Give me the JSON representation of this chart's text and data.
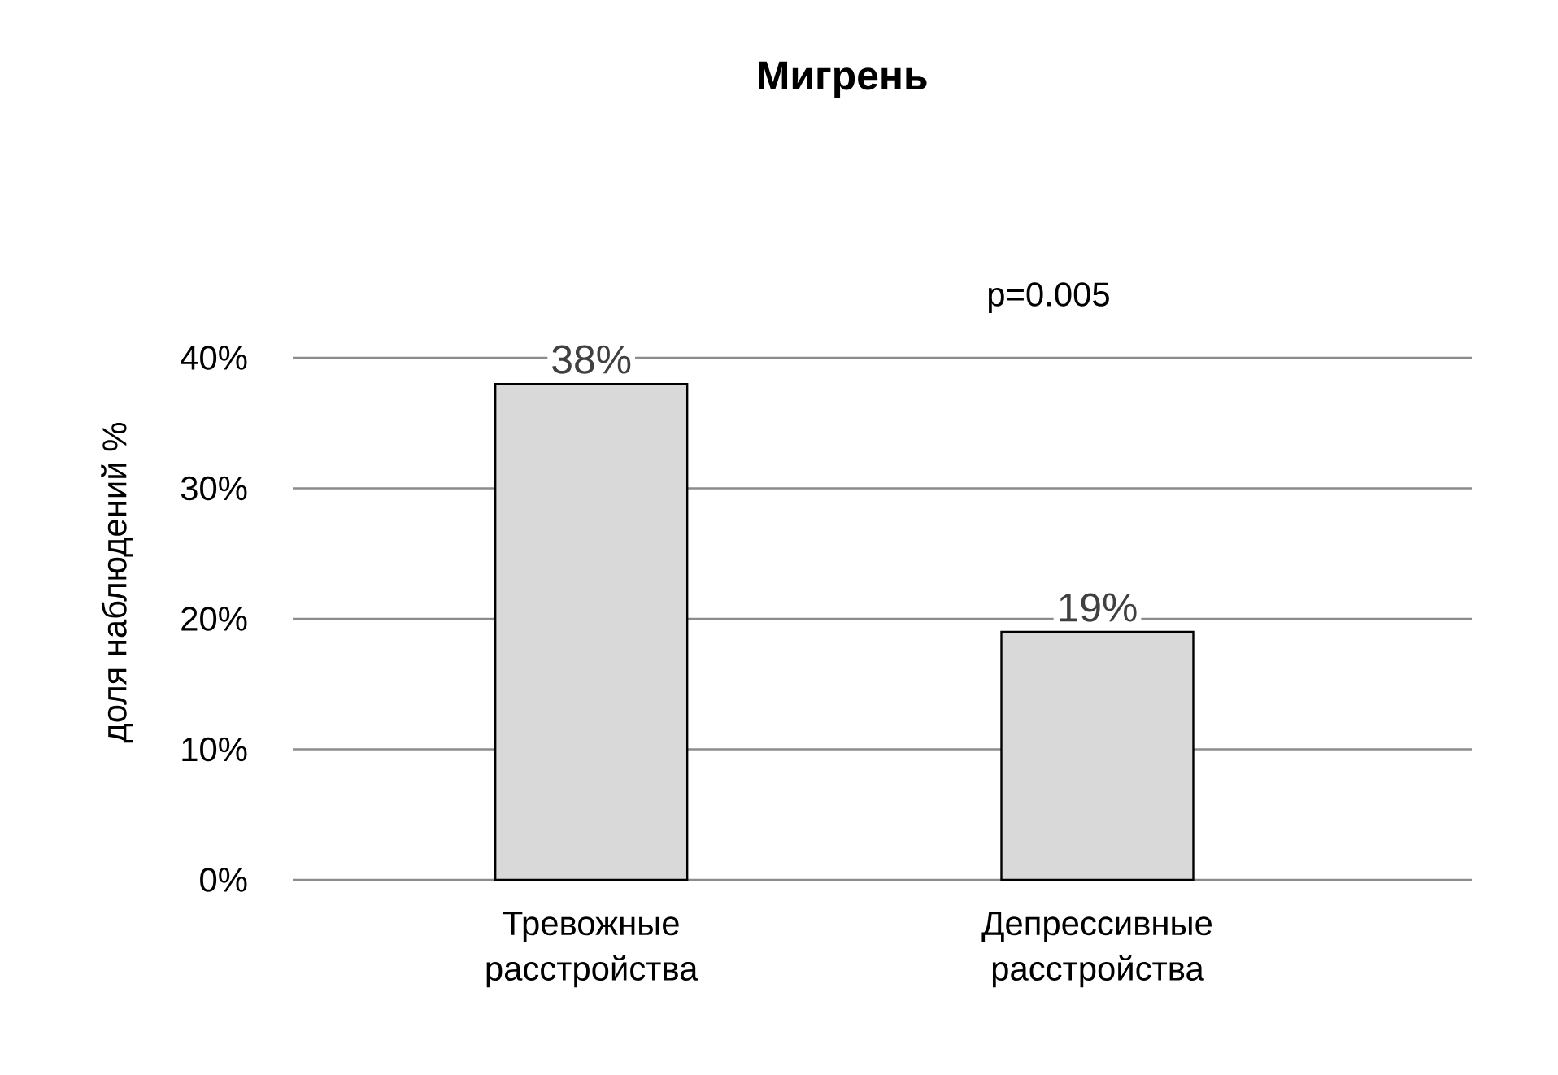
{
  "chart_data": {
    "type": "bar",
    "title": "Мигрень",
    "ylabel": "доля наблюдений %",
    "categories": [
      "Тревожные расстройства",
      "Депрессивные расстройства"
    ],
    "values": [
      38,
      19
    ],
    "value_labels": [
      "38%",
      "19%"
    ],
    "color": "#d9d9d9",
    "ylim": [
      0,
      40
    ],
    "yticks": [
      {
        "value": 0,
        "label": "0%"
      },
      {
        "value": 10,
        "label": "10%"
      },
      {
        "value": 20,
        "label": "20%"
      },
      {
        "value": 30,
        "label": "30%"
      },
      {
        "value": 40,
        "label": "40%"
      }
    ],
    "grid": "y",
    "annotations": [
      "p=0.005"
    ]
  }
}
